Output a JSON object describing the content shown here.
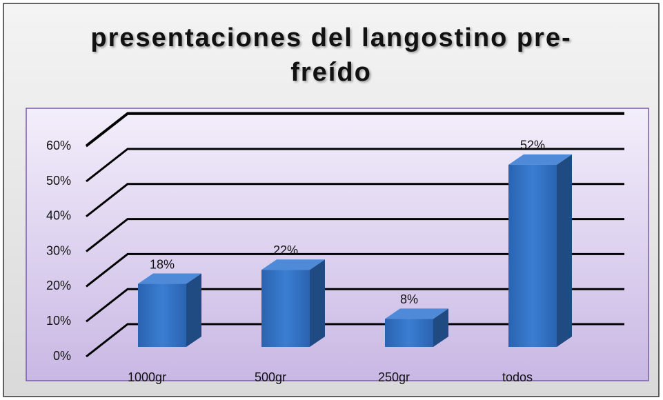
{
  "chart_data": {
    "type": "bar3d",
    "title": "presentaciones del langostino pre-freído",
    "categories": [
      "1000gr",
      "500gr",
      "250gr",
      "todos"
    ],
    "values": [
      18,
      22,
      8,
      52
    ],
    "value_labels": [
      "18%",
      "22%",
      "8%",
      "52%"
    ],
    "color": "#2f6fc2",
    "ylim": [
      0,
      70
    ],
    "yticks": [
      {
        "value": 0,
        "label": "0%"
      },
      {
        "value": 10,
        "label": "10%"
      },
      {
        "value": 20,
        "label": "20%"
      },
      {
        "value": 30,
        "label": "30%"
      },
      {
        "value": 40,
        "label": "40%"
      },
      {
        "value": 50,
        "label": "50%"
      },
      {
        "value": 60,
        "label": "60%"
      }
    ],
    "grid": true
  }
}
